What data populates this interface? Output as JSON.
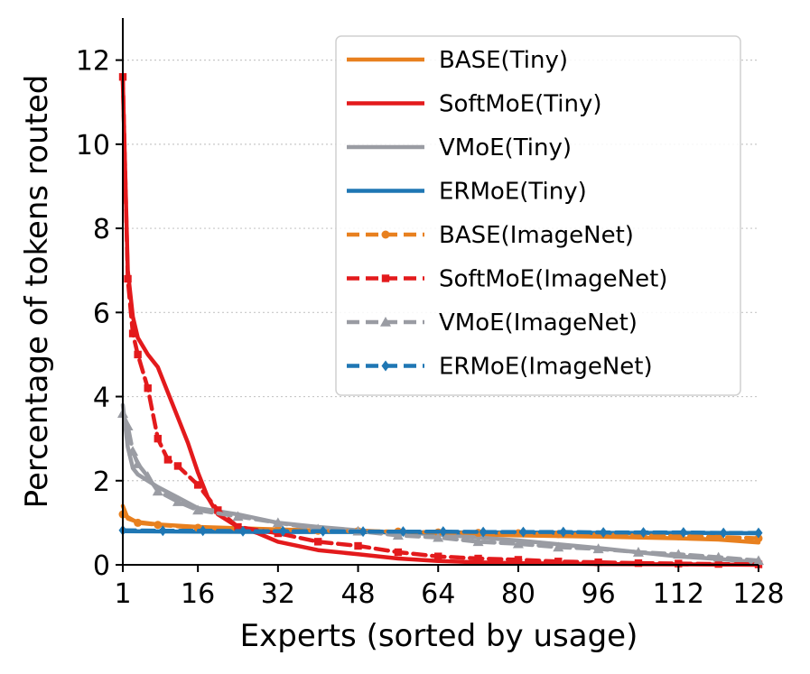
{
  "chart_data": {
    "type": "line",
    "title": "",
    "xlabel": "Experts (sorted by usage)",
    "ylabel": "Percentage of tokens routed",
    "xlim": [
      1,
      128
    ],
    "ylim": [
      0,
      13
    ],
    "xticks": [
      1,
      16,
      32,
      48,
      64,
      80,
      96,
      112,
      128
    ],
    "yticks": [
      0,
      2,
      4,
      6,
      8,
      10,
      12
    ],
    "grid": "horizontal dotted",
    "legend_position": "upper right",
    "series": [
      {
        "name": "BASE(Tiny)",
        "color": "#e8801f",
        "style": "solid",
        "marker": "none",
        "x": [
          1,
          2,
          4,
          8,
          16,
          32,
          48,
          64,
          80,
          96,
          112,
          120,
          128
        ],
        "y": [
          1.4,
          1.1,
          1.02,
          0.96,
          0.9,
          0.84,
          0.79,
          0.74,
          0.7,
          0.67,
          0.63,
          0.6,
          0.53
        ]
      },
      {
        "name": "SoftMoE(Tiny)",
        "color": "#e31a1c",
        "style": "solid",
        "marker": "none",
        "x": [
          1,
          2,
          3,
          4,
          6,
          8,
          10,
          12,
          14,
          16,
          18,
          20,
          24,
          28,
          32,
          40,
          48,
          56,
          64,
          72,
          80,
          96,
          112,
          128
        ],
        "y": [
          11.5,
          7.0,
          5.9,
          5.4,
          5.0,
          4.7,
          4.1,
          3.5,
          2.9,
          2.2,
          1.6,
          1.2,
          0.9,
          0.75,
          0.55,
          0.35,
          0.25,
          0.15,
          0.09,
          0.06,
          0.04,
          0.02,
          0.01,
          0.0
        ]
      },
      {
        "name": "VMoE(Tiny)",
        "color": "#9a9ca3",
        "style": "solid",
        "marker": "none",
        "x": [
          1,
          2,
          3,
          4,
          6,
          8,
          12,
          16,
          24,
          32,
          40,
          48,
          64,
          80,
          96,
          112,
          120,
          128
        ],
        "y": [
          3.8,
          2.8,
          2.3,
          2.15,
          2.0,
          1.85,
          1.6,
          1.35,
          1.2,
          1.0,
          0.9,
          0.82,
          0.72,
          0.58,
          0.4,
          0.2,
          0.14,
          0.06
        ]
      },
      {
        "name": "ERMoE(Tiny)",
        "color": "#1f77b4",
        "style": "solid",
        "marker": "none",
        "x": [
          1,
          16,
          32,
          48,
          64,
          80,
          96,
          112,
          128
        ],
        "y": [
          0.8,
          0.79,
          0.78,
          0.78,
          0.77,
          0.77,
          0.76,
          0.76,
          0.75
        ]
      },
      {
        "name": "BASE(ImageNet)",
        "color": "#e8801f",
        "style": "dashed",
        "marker": "circle",
        "x": [
          1,
          4,
          8,
          16,
          24,
          32,
          40,
          48,
          56,
          64,
          72,
          80,
          88,
          96,
          104,
          112,
          120,
          128
        ],
        "y": [
          1.2,
          1.0,
          0.95,
          0.88,
          0.85,
          0.83,
          0.81,
          0.8,
          0.79,
          0.77,
          0.76,
          0.75,
          0.73,
          0.72,
          0.7,
          0.68,
          0.66,
          0.63
        ]
      },
      {
        "name": "SoftMoE(ImageNet)",
        "color": "#e31a1c",
        "style": "dashed",
        "marker": "square",
        "x": [
          1,
          2,
          3,
          4,
          6,
          8,
          10,
          12,
          16,
          20,
          24,
          32,
          40,
          48,
          56,
          64,
          72,
          80,
          88,
          96,
          104,
          112,
          120,
          128
        ],
        "y": [
          11.6,
          6.8,
          5.5,
          5.0,
          4.2,
          3.0,
          2.5,
          2.35,
          1.9,
          1.3,
          0.9,
          0.75,
          0.55,
          0.45,
          0.3,
          0.2,
          0.15,
          0.12,
          0.08,
          0.06,
          0.04,
          0.03,
          0.02,
          0.01
        ]
      },
      {
        "name": "VMoE(ImageNet)",
        "color": "#9a9ca3",
        "style": "dashed",
        "marker": "triangle",
        "x": [
          1,
          2,
          3,
          4,
          6,
          8,
          12,
          16,
          24,
          32,
          40,
          48,
          56,
          64,
          72,
          80,
          88,
          96,
          104,
          112,
          120,
          128
        ],
        "y": [
          3.6,
          3.3,
          2.7,
          2.4,
          2.1,
          1.75,
          1.5,
          1.3,
          1.15,
          1.0,
          0.85,
          0.8,
          0.7,
          0.65,
          0.55,
          0.5,
          0.42,
          0.38,
          0.3,
          0.25,
          0.18,
          0.1
        ]
      },
      {
        "name": "ERMoE(ImageNet)",
        "color": "#1f77b4",
        "style": "dashed",
        "marker": "diamond",
        "x": [
          1,
          9,
          17,
          25,
          33,
          41,
          49,
          57,
          65,
          73,
          81,
          89,
          97,
          105,
          113,
          121,
          128
        ],
        "y": [
          0.82,
          0.81,
          0.81,
          0.8,
          0.8,
          0.8,
          0.79,
          0.79,
          0.79,
          0.78,
          0.78,
          0.78,
          0.77,
          0.77,
          0.77,
          0.76,
          0.76
        ]
      }
    ]
  }
}
